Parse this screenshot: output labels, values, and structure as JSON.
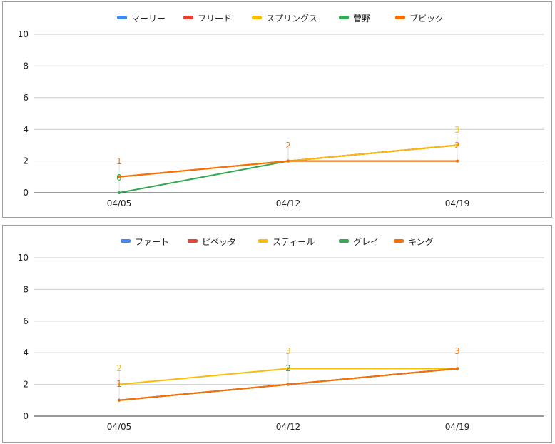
{
  "colors": {
    "blue": "#4285f4",
    "red": "#ea4335",
    "yellow": "#fbbc04",
    "green": "#34a853",
    "orange": "#ff6d01"
  },
  "chart_data": [
    {
      "type": "line",
      "categories": [
        "04/05",
        "04/12",
        "04/19"
      ],
      "ylim": [
        0,
        10
      ],
      "yticks": [
        "0",
        "2",
        "4",
        "6",
        "8",
        "10"
      ],
      "legend_position": "top",
      "grid": true,
      "series": [
        {
          "name": "マーリー",
          "color": "#4285f4",
          "values": [
            1,
            2,
            3
          ]
        },
        {
          "name": "フリード",
          "color": "#ea4335",
          "values": [
            1,
            2,
            3
          ]
        },
        {
          "name": "スプリングス",
          "color": "#fbbc04",
          "values": [
            1,
            2,
            3
          ]
        },
        {
          "name": "菅野",
          "color": "#34a853",
          "values": [
            0,
            2,
            2
          ]
        },
        {
          "name": "ブビック",
          "color": "#ff6d01",
          "values": [
            1,
            2,
            2
          ]
        }
      ],
      "data_labels": [
        {
          "text": "0",
          "color": "#34a853",
          "x": 0,
          "y": 0
        },
        {
          "text": "1",
          "color": "#ff6d01",
          "x": 0,
          "y": 1
        },
        {
          "text": "2",
          "color": "#ff6d01",
          "x": 1,
          "y": 2
        },
        {
          "text": "3",
          "color": "#fbbc04",
          "x": 2,
          "y": 3
        },
        {
          "text": "2",
          "color": "#ff6d01",
          "x": 2,
          "y": 2
        }
      ]
    },
    {
      "type": "line",
      "categories": [
        "04/05",
        "04/12",
        "04/19"
      ],
      "ylim": [
        0,
        10
      ],
      "yticks": [
        "0",
        "2",
        "4",
        "6",
        "8",
        "10"
      ],
      "legend_position": "top",
      "grid": true,
      "series": [
        {
          "name": "ファート",
          "color": "#4285f4",
          "values": [
            1,
            2,
            3
          ]
        },
        {
          "name": "ピベッタ",
          "color": "#ea4335",
          "values": [
            1,
            2,
            3
          ]
        },
        {
          "name": "スティール",
          "color": "#fbbc04",
          "values": [
            2,
            3,
            3
          ]
        },
        {
          "name": "グレイ",
          "color": "#34a853",
          "values": [
            1,
            2,
            3
          ]
        },
        {
          "name": "キング",
          "color": "#ff6d01",
          "values": [
            1,
            2,
            3
          ]
        }
      ],
      "data_labels": [
        {
          "text": "2",
          "color": "#fbbc04",
          "x": 0,
          "y": 2
        },
        {
          "text": "1",
          "color": "#ff6d01",
          "x": 0,
          "y": 1
        },
        {
          "text": "3",
          "color": "#fbbc04",
          "x": 1,
          "y": 3
        },
        {
          "text": "2",
          "color": "#34a853",
          "x": 1,
          "y": 2
        },
        {
          "text": "3",
          "color": "#ff6d01",
          "x": 2,
          "y": 3
        }
      ]
    }
  ]
}
